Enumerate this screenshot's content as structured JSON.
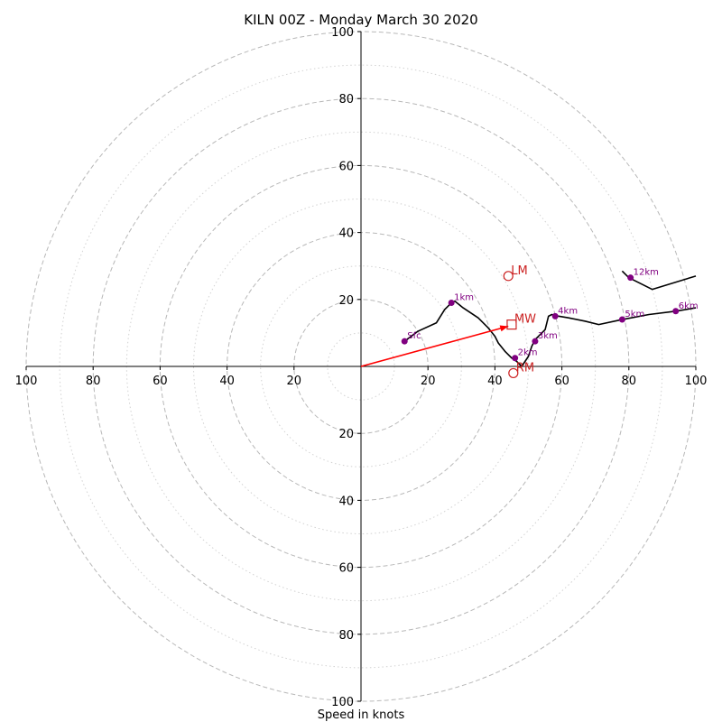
{
  "chart_data": {
    "type": "scatter",
    "title": "KILN 00Z - Monday March 30 2020",
    "xlabel": "Speed in knots",
    "axis_range": [
      -100,
      100
    ],
    "ring_major": [
      20,
      40,
      60,
      80,
      100
    ],
    "ring_minor": [
      10,
      30,
      50,
      70,
      90
    ],
    "tick_labels": {
      "right": [
        "20",
        "40",
        "60",
        "80",
        "100"
      ],
      "left": [
        "20",
        "40",
        "60",
        "80",
        "100"
      ],
      "up": [
        "20",
        "40",
        "60",
        "80",
        "100"
      ],
      "down": [
        "20",
        "40",
        "60",
        "80",
        "100"
      ]
    },
    "hodograph": {
      "x": [
        13,
        17,
        22.5,
        25,
        27,
        28,
        30.5,
        35,
        38,
        40,
        41,
        43,
        45,
        46.5,
        48,
        50,
        51,
        52,
        55,
        56,
        57,
        59,
        62,
        67,
        71,
        78,
        86,
        94,
        100
      ],
      "y": [
        7.5,
        10.5,
        13,
        17,
        19,
        19.5,
        17.5,
        14.5,
        11.5,
        9,
        7,
        4.5,
        2.5,
        1.5,
        0,
        3,
        6,
        8,
        11,
        15,
        15.5,
        15,
        14.5,
        13.5,
        12.5,
        14,
        15.5,
        16.5,
        17.5
      ]
    },
    "hodograph_upper": {
      "x": [
        78,
        80,
        87,
        100
      ],
      "y": [
        28.5,
        26.5,
        23,
        27
      ]
    },
    "height_markers": [
      {
        "label": "Sfc",
        "x": 13,
        "y": 7.5
      },
      {
        "label": "1km",
        "x": 27,
        "y": 19
      },
      {
        "label": "2km",
        "x": 46,
        "y": 2.5
      },
      {
        "label": "3km",
        "x": 52,
        "y": 7.5
      },
      {
        "label": "4km",
        "x": 58,
        "y": 15
      },
      {
        "label": "5km",
        "x": 78,
        "y": 14
      },
      {
        "label": "6km",
        "x": 94,
        "y": 16.5
      },
      {
        "label": "12km",
        "x": 80.5,
        "y": 26.5
      }
    ],
    "motion_markers": [
      {
        "label": "LM",
        "x": 44,
        "y": 27,
        "shape": "circle"
      },
      {
        "label": "MW",
        "x": 45,
        "y": 12.5,
        "shape": "square"
      },
      {
        "label": "RM",
        "x": 45.5,
        "y": -2,
        "shape": "circle"
      }
    ],
    "arrow": {
      "from": [
        0,
        0
      ],
      "to": [
        44,
        12
      ]
    },
    "colors": {
      "hodograph": "#000000",
      "height_marker": "#800080",
      "motion": "#cc2222",
      "arrow": "#ff0000",
      "ring_major": "#b8b8b8",
      "ring_minor": "#d2d2d2"
    },
    "grid": true
  }
}
